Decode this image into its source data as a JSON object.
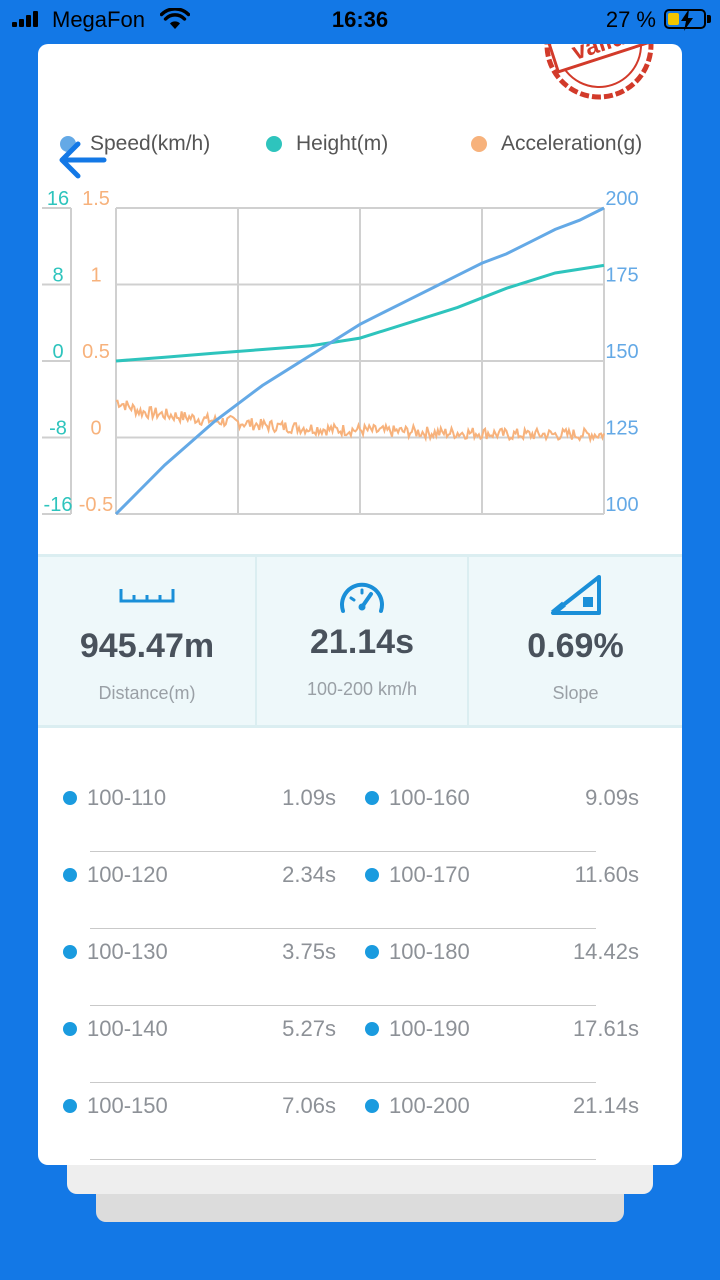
{
  "status_bar": {
    "carrier": "MegaFon",
    "time": "16:36",
    "battery": "27 %"
  },
  "legend": [
    {
      "label": "Speed(km/h)",
      "color": "#64a9e6"
    },
    {
      "label": "Height(m)",
      "color": "#2ec4bd"
    },
    {
      "label": "Acceleration(g)",
      "color": "#f7b27c"
    }
  ],
  "chart_data": {
    "type": "line",
    "title": "",
    "xlabel": "",
    "grid": true,
    "axes": {
      "height_left": {
        "ticks": [
          "16",
          "8",
          "0",
          "-8",
          "-16"
        ],
        "ylim": [
          -16,
          16
        ],
        "color": "#2ec4bd"
      },
      "acceleration_left": {
        "ticks": [
          "1.5",
          "1",
          "0.5",
          "0",
          "-0.5"
        ],
        "ylim": [
          -0.5,
          1.5
        ],
        "color": "#f7b27c"
      },
      "speed_right": {
        "ticks": [
          "200",
          "175",
          "150",
          "125",
          "100"
        ],
        "ylim": [
          100,
          200
        ],
        "color": "#64a9e6"
      }
    },
    "series": [
      {
        "name": "Speed(km/h)",
        "axis": "speed_right",
        "x": [
          0,
          0.05,
          0.1,
          0.15,
          0.2,
          0.25,
          0.3,
          0.35,
          0.4,
          0.45,
          0.5,
          0.55,
          0.6,
          0.65,
          0.7,
          0.75,
          0.8,
          0.85,
          0.9,
          0.95,
          1
        ],
        "values": [
          100,
          108,
          116,
          123,
          130,
          136,
          142,
          147,
          152,
          157,
          162,
          166,
          170,
          174,
          178,
          182,
          185,
          189,
          193,
          196,
          200
        ]
      },
      {
        "name": "Height(m)",
        "axis": "height_left",
        "x": [
          0,
          0.1,
          0.2,
          0.3,
          0.4,
          0.5,
          0.6,
          0.7,
          0.8,
          0.9,
          1
        ],
        "values": [
          0,
          0.4,
          0.8,
          1.2,
          1.6,
          2.4,
          4.0,
          5.6,
          7.6,
          9.2,
          10.0
        ]
      },
      {
        "name": "Acceleration(g)",
        "axis": "acceleration_left",
        "x": [
          0,
          0.05,
          0.1,
          0.15,
          0.2,
          0.25,
          0.3,
          0.35,
          0.4,
          0.45,
          0.5,
          0.55,
          0.6,
          0.65,
          0.7,
          0.75,
          0.8,
          0.85,
          0.9,
          0.95,
          1
        ],
        "values": [
          0.24,
          0.17,
          0.15,
          0.13,
          0.11,
          0.1,
          0.08,
          0.07,
          0.06,
          0.05,
          0.05,
          0.04,
          0.04,
          0.03,
          0.03,
          0.03,
          0.02,
          0.02,
          0.02,
          0.02,
          0.02
        ]
      }
    ]
  },
  "stats": [
    {
      "icon": "ruler-icon",
      "value": "945.47m",
      "label": "Distance(m)"
    },
    {
      "icon": "speedometer-icon",
      "value": "21.14s",
      "label": "100-200 km/h"
    },
    {
      "icon": "slope-icon",
      "value": "0.69%",
      "label": "Slope"
    }
  ],
  "splits": [
    {
      "left_label": "100-110",
      "left_time": "1.09s",
      "right_label": "100-160",
      "right_time": "9.09s"
    },
    {
      "left_label": "100-120",
      "left_time": "2.34s",
      "right_label": "100-170",
      "right_time": "11.60s"
    },
    {
      "left_label": "100-130",
      "left_time": "3.75s",
      "right_label": "100-180",
      "right_time": "14.42s"
    },
    {
      "left_label": "100-140",
      "left_time": "5.27s",
      "right_label": "100-190",
      "right_time": "17.61s"
    },
    {
      "left_label": "100-150",
      "left_time": "7.06s",
      "right_label": "100-200",
      "right_time": "21.14s"
    }
  ],
  "stamp": {
    "text": "valid",
    "color": "#d23a2a"
  }
}
